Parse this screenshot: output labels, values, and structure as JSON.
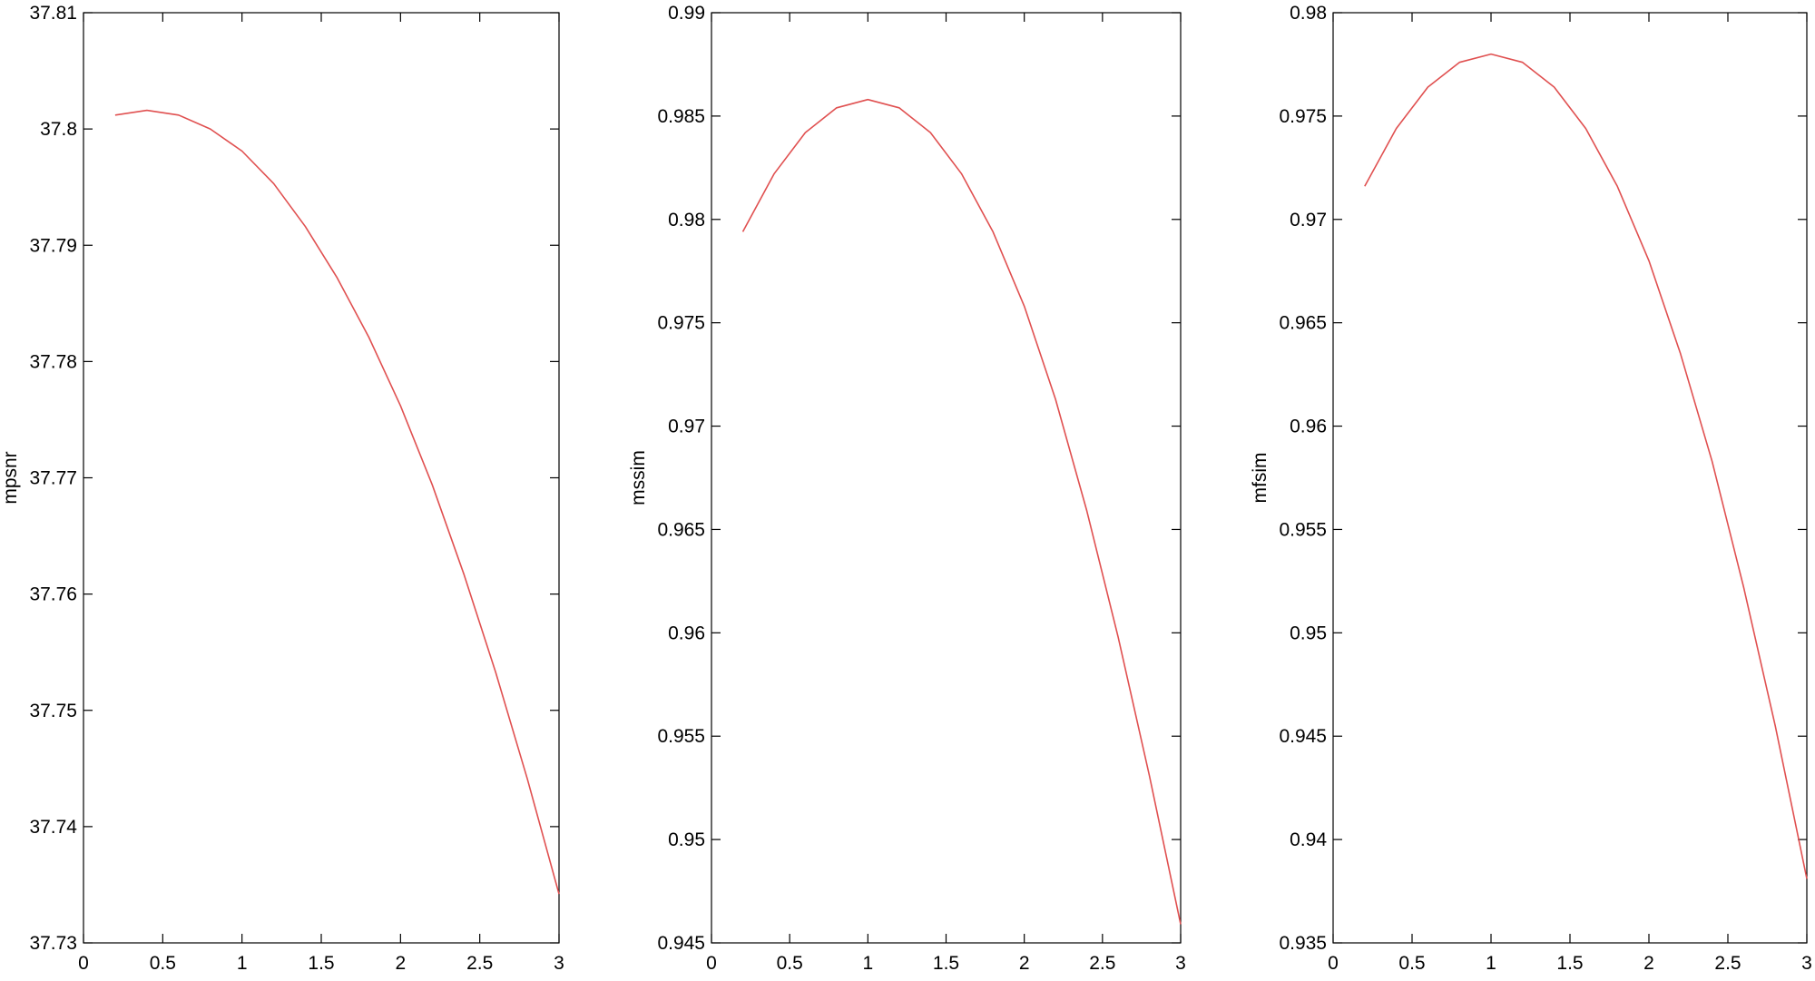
{
  "chart_data": [
    {
      "type": "line",
      "ylabel": "mpsnr",
      "xlim": [
        0,
        3
      ],
      "ylim": [
        37.73,
        37.81
      ],
      "xticks": [
        0,
        0.5,
        1,
        1.5,
        2,
        2.5,
        3
      ],
      "xtick_labels": [
        "0",
        "0.5",
        "1",
        "1.5",
        "2",
        "2.5",
        "3"
      ],
      "yticks": [
        37.73,
        37.74,
        37.75,
        37.76,
        37.77,
        37.78,
        37.79,
        37.8,
        37.81
      ],
      "ytick_labels": [
        "37.73",
        "37.74",
        "37.75",
        "37.76",
        "37.77",
        "37.78",
        "37.79",
        "37.8",
        "37.81"
      ],
      "grid": false,
      "series": [
        {
          "color": "#e05050",
          "x": [
            0.2,
            0.4,
            0.6,
            0.8,
            1.0,
            1.2,
            1.4,
            1.6,
            1.8,
            2.0,
            2.2,
            2.4,
            2.6,
            2.8,
            3.0
          ],
          "y": [
            37.8012,
            37.8016,
            37.8012,
            37.8,
            37.7981,
            37.7953,
            37.7916,
            37.7872,
            37.7821,
            37.7762,
            37.7694,
            37.7617,
            37.7533,
            37.7441,
            37.7342
          ]
        }
      ]
    },
    {
      "type": "line",
      "ylabel": "mssim",
      "xlim": [
        0,
        3
      ],
      "ylim": [
        0.945,
        0.99
      ],
      "xticks": [
        0,
        0.5,
        1,
        1.5,
        2,
        2.5,
        3
      ],
      "xtick_labels": [
        "0",
        "0.5",
        "1",
        "1.5",
        "2",
        "2.5",
        "3"
      ],
      "yticks": [
        0.945,
        0.95,
        0.955,
        0.96,
        0.965,
        0.97,
        0.975,
        0.98,
        0.985,
        0.99
      ],
      "ytick_labels": [
        "0.945",
        "0.95",
        "0.955",
        "0.96",
        "0.965",
        "0.97",
        "0.975",
        "0.98",
        "0.985",
        "0.99"
      ],
      "grid": false,
      "series": [
        {
          "color": "#e05050",
          "x": [
            0.2,
            0.4,
            0.6,
            0.8,
            1.0,
            1.2,
            1.4,
            1.6,
            1.8,
            2.0,
            2.2,
            2.4,
            2.6,
            2.8,
            3.0
          ],
          "y": [
            0.9794,
            0.9822,
            0.9842,
            0.9854,
            0.9858,
            0.9854,
            0.9842,
            0.9822,
            0.9794,
            0.9758,
            0.9713,
            0.9659,
            0.9598,
            0.9531,
            0.9459
          ]
        }
      ]
    },
    {
      "type": "line",
      "ylabel": "mfsim",
      "xlim": [
        0,
        3
      ],
      "ylim": [
        0.935,
        0.98
      ],
      "xticks": [
        0,
        0.5,
        1,
        1.5,
        2,
        2.5,
        3
      ],
      "xtick_labels": [
        "0",
        "0.5",
        "1",
        "1.5",
        "2",
        "2.5",
        "3"
      ],
      "yticks": [
        0.935,
        0.94,
        0.945,
        0.95,
        0.955,
        0.96,
        0.965,
        0.97,
        0.975,
        0.98
      ],
      "ytick_labels": [
        "0.935",
        "0.94",
        "0.945",
        "0.95",
        "0.955",
        "0.96",
        "0.965",
        "0.97",
        "0.975",
        "0.98"
      ],
      "grid": false,
      "series": [
        {
          "color": "#e05050",
          "x": [
            0.2,
            0.4,
            0.6,
            0.8,
            1.0,
            1.2,
            1.4,
            1.6,
            1.8,
            2.0,
            2.2,
            2.4,
            2.6,
            2.8,
            3.0
          ],
          "y": [
            0.9716,
            0.9744,
            0.9764,
            0.9776,
            0.978,
            0.9776,
            0.9764,
            0.9744,
            0.9716,
            0.968,
            0.9635,
            0.9583,
            0.9522,
            0.9455,
            0.9381
          ]
        }
      ]
    }
  ]
}
